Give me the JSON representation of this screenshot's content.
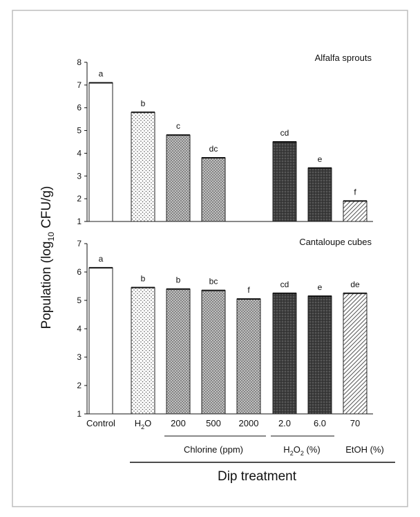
{
  "chart_data": [
    {
      "type": "bar",
      "title": "Alfalfa sprouts",
      "ylim": [
        1,
        8
      ],
      "yticks": [
        1,
        2,
        3,
        4,
        5,
        6,
        7,
        8
      ],
      "categories": [
        "Control",
        "H2O",
        "200",
        "500",
        "2000",
        "2.0",
        "6.0",
        "70"
      ],
      "values": [
        7.1,
        5.8,
        4.8,
        3.8,
        null,
        4.5,
        3.35,
        1.9
      ],
      "letters": [
        "a",
        "b",
        "c",
        "dc",
        "",
        "cd",
        "e",
        "f"
      ],
      "patterns": [
        "white",
        "dots",
        "crosshatch",
        "crosshatch",
        "crosshatch",
        "dark",
        "dark",
        "diagonal"
      ]
    },
    {
      "type": "bar",
      "title": "Cantaloupe cubes",
      "ylim": [
        1,
        7
      ],
      "yticks": [
        1,
        2,
        3,
        4,
        5,
        6,
        7
      ],
      "categories": [
        "Control",
        "H2O",
        "200",
        "500",
        "2000",
        "2.0",
        "6.0",
        "70"
      ],
      "values": [
        6.15,
        5.45,
        5.4,
        5.35,
        5.05,
        5.25,
        5.15,
        5.25
      ],
      "letters": [
        "a",
        "b",
        "b",
        "bc",
        "f",
        "cd",
        "e",
        "de"
      ],
      "patterns": [
        "white",
        "dots",
        "crosshatch",
        "crosshatch",
        "crosshatch",
        "dark",
        "dark",
        "diagonal"
      ]
    }
  ],
  "axes": {
    "ylabel_main": "Population (log",
    "ylabel_sub": "10",
    "ylabel_tail": " CFU/g)",
    "xlabel": "Dip treatment"
  },
  "x_labels": {
    "control": "Control",
    "h2o_main": "H",
    "h2o_sub": "2",
    "h2o_tail": "O",
    "chlorine_200": "200",
    "chlorine_500": "500",
    "chlorine_2000": "2000",
    "h2o2_20": "2.0",
    "h2o2_60": "6.0",
    "etoh_70": "70"
  },
  "groups": {
    "chlorine": "Chlorine (ppm)",
    "h2o2_main": "H",
    "h2o2_sub1": "2",
    "h2o2_mid": "O",
    "h2o2_sub2": "2",
    "h2o2_tail": " (%)",
    "etoh": "EtOH (%)"
  },
  "colors": {
    "border": "#bdbdbd",
    "axis": "#111111",
    "dark_fill": "#3d3d3d",
    "pattern_stroke": "#444444"
  }
}
